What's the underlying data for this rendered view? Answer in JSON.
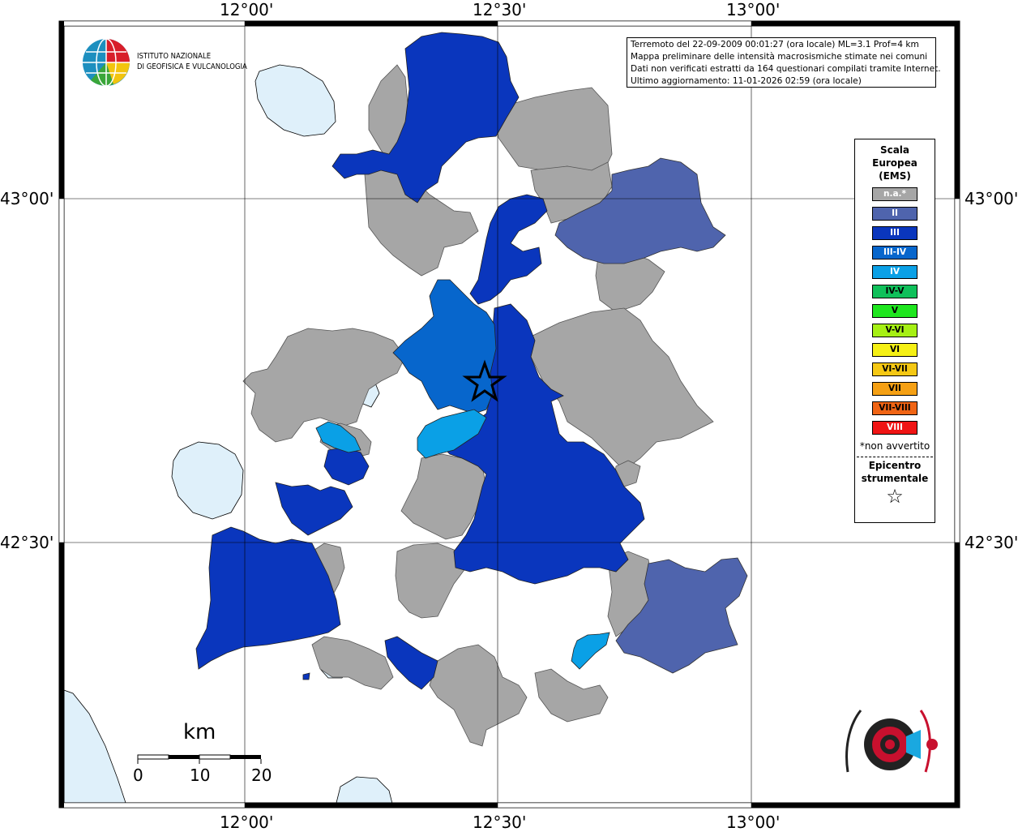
{
  "map": {
    "top_labels": [
      "12°00'",
      "12°30'",
      "13°00'"
    ],
    "bottom_labels": [
      "12°00'",
      "12°30'",
      "13°00'"
    ],
    "left_labels": [
      "43°00'",
      "42°30'"
    ],
    "right_labels": [
      "43°00'",
      "42°30'"
    ]
  },
  "info": {
    "line1": "Terremoto del 22-09-2009 00:01:27 (ora locale) ML=3.1 Prof=4 km",
    "line2": "Mappa preliminare delle intensità macrosismiche stimate nei comuni",
    "line3": "Dati non verificati estratti da 164 questionari compilati tramite Internet.",
    "line4": "Ultimo aggiornamento: 11-01-2026 02:59 (ora locale)"
  },
  "logo": {
    "line1": "ISTITUTO NAZIONALE",
    "line2": "DI GEOFISICA E VULCANOLOGIA"
  },
  "legend": {
    "title1": "Scala",
    "title2": "Europea",
    "title3": "(EMS)",
    "items": [
      {
        "label": "n.a.*",
        "color": "#a6a6a6",
        "text_color": "#ffffff"
      },
      {
        "label": "II",
        "color": "#4f64ad",
        "text_color": "#ffffff"
      },
      {
        "label": "III",
        "color": "#0a36bd",
        "text_color": "#ffffff"
      },
      {
        "label": "III-IV",
        "color": "#0766cc",
        "text_color": "#ffffff"
      },
      {
        "label": "IV",
        "color": "#0aa0e6",
        "text_color": "#ffffff"
      },
      {
        "label": "IV-V",
        "color": "#0fc05a",
        "text_color": "#000000"
      },
      {
        "label": "V",
        "color": "#1ee61e",
        "text_color": "#000000"
      },
      {
        "label": "V-VI",
        "color": "#a6f014",
        "text_color": "#000000"
      },
      {
        "label": "VI",
        "color": "#f5f014",
        "text_color": "#000000"
      },
      {
        "label": "VI-VII",
        "color": "#f5c814",
        "text_color": "#000000"
      },
      {
        "label": "VII",
        "color": "#f5a014",
        "text_color": "#000000"
      },
      {
        "label": "VII-VIII",
        "color": "#f06414",
        "text_color": "#000000"
      },
      {
        "label": "VIII",
        "color": "#f01414",
        "text_color": "#ffffff"
      }
    ],
    "note": "*non avvertito",
    "epi1": "Epicentro",
    "epi2": "strumentale",
    "star": "☆"
  },
  "scalebar": {
    "title": "km",
    "labels": [
      "0",
      "10",
      "20"
    ]
  },
  "colors": {
    "water": "#dff0fa",
    "na": "#a6a6a6",
    "ems2": "#4f64ad",
    "ems3": "#0a36bd",
    "ems34": "#0766cc",
    "ems4": "#0aa0e6"
  },
  "icons": [
    "ingv-globe-icon",
    "epicenter-star-icon",
    "haisentito-logo-icon"
  ]
}
